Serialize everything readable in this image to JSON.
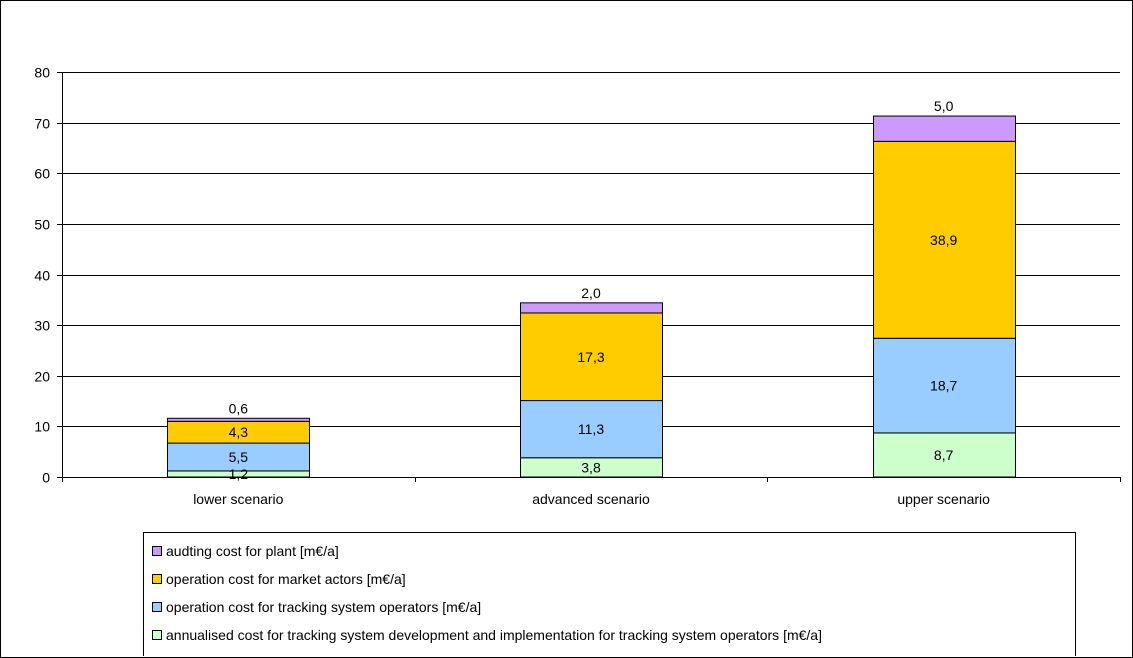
{
  "chart_data": {
    "type": "bar",
    "stacked": true,
    "categories": [
      "lower scenario",
      "advanced scenario",
      "upper scenario"
    ],
    "series": [
      {
        "name": "annualised cost for tracking system development and implementation for tracking system operators [m€/a]",
        "color": "#ccffcc",
        "values": [
          1.2,
          3.8,
          8.7
        ],
        "labels": [
          "1,2",
          "3,8",
          "8,7"
        ]
      },
      {
        "name": "operation cost for tracking system operators [m€/a]",
        "color": "#99ccff",
        "values": [
          5.5,
          11.3,
          18.7
        ],
        "labels": [
          "5,5",
          "11,3",
          "18,7"
        ]
      },
      {
        "name": "operation cost for market actors [m€/a]",
        "color": "#ffcc00",
        "values": [
          4.3,
          17.3,
          38.9
        ],
        "labels": [
          "4,3",
          "17,3",
          "38,9"
        ]
      },
      {
        "name": "audting cost for plant [m€/a]",
        "color": "#cc99ff",
        "values": [
          0.6,
          2.0,
          5.0
        ],
        "labels": [
          "0,6",
          "2,0",
          "5,0"
        ]
      }
    ],
    "ylim": [
      0,
      80
    ],
    "yticks": [
      0,
      10,
      20,
      30,
      40,
      50,
      60,
      70,
      80
    ],
    "grid": true,
    "legend_position": "bottom",
    "legend_order": [
      3,
      2,
      1,
      0
    ],
    "title": "",
    "xlabel": "",
    "ylabel": ""
  }
}
